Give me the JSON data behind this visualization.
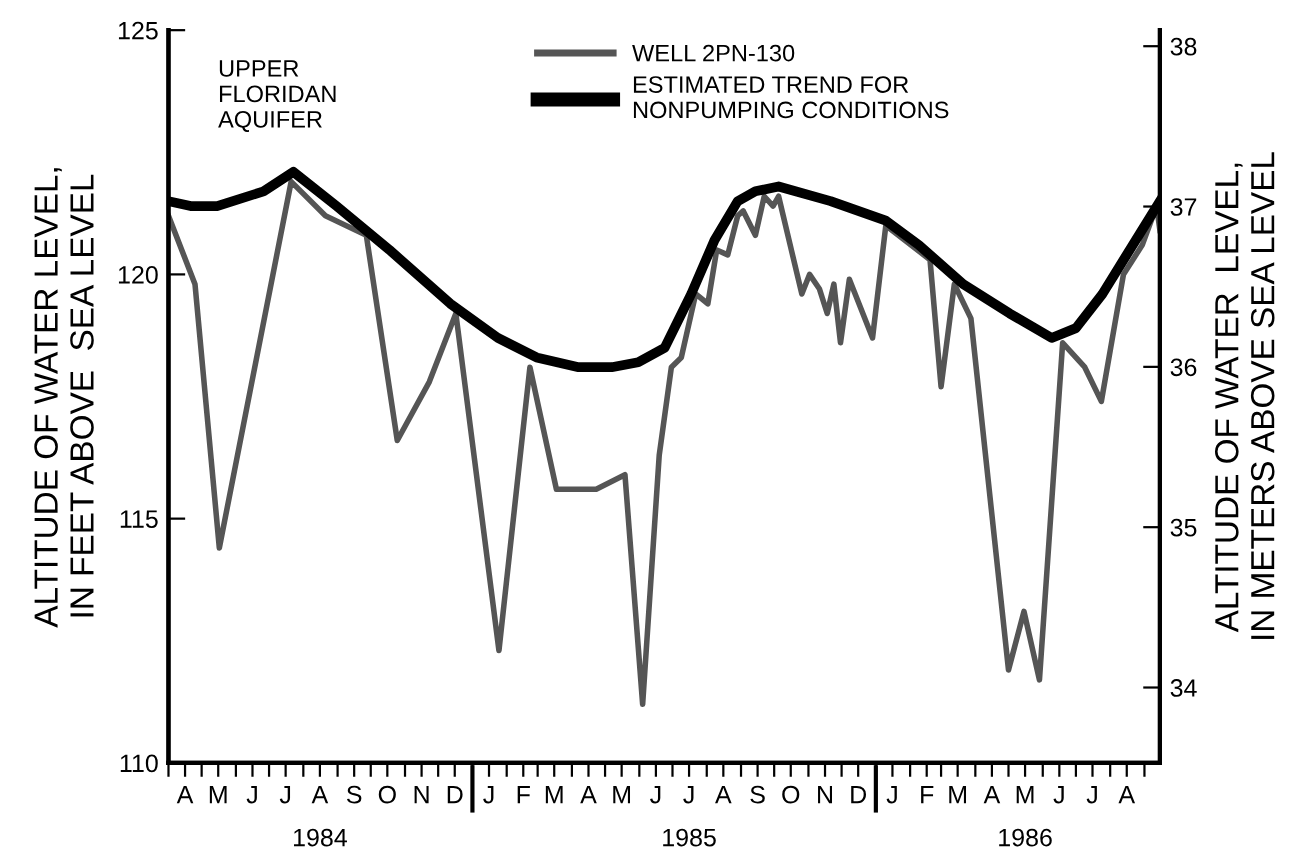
{
  "chart_data": {
    "type": "line",
    "ylabel": "ALTITUDE OF WATER LEVEL,\nIN FEET ABOVE  SEA LEVEL",
    "y2label": "ALTITUDE OF WATER  LEVEL,\nIN METERS ABOVE SEA LEVEL",
    "annotations": [
      "UPPER\nFLORIDAN\nAQUIFER"
    ],
    "series": [
      {
        "name": "WELL 2PN-130",
        "color": "#555555",
        "x": [
          "1984-04-01",
          "1984-04-25",
          "1984-05-17",
          "1984-07-21",
          "1984-08-21",
          "1984-09-27",
          "1984-10-25",
          "1984-11-23",
          "1984-12-17",
          "1985-01-25",
          "1985-02-22",
          "1985-03-18",
          "1985-04-23",
          "1985-05-19",
          "1985-06-04",
          "1985-06-19",
          "1985-06-30",
          "1985-07-09",
          "1985-07-22",
          "1985-08-02",
          "1985-08-10",
          "1985-08-20",
          "1985-08-29",
          "1985-09-03",
          "1985-09-14",
          "1985-09-22",
          "1985-09-30",
          "1985-10-05",
          "1985-10-26",
          "1985-11-02",
          "1985-11-11",
          "1985-11-18",
          "1985-11-24",
          "1985-11-30",
          "1985-12-08",
          "1985-12-29",
          "1986-01-10",
          "1986-02-19",
          "1986-03-01",
          "1986-03-13",
          "1986-03-28",
          "1986-05-01",
          "1986-05-15",
          "1986-05-29",
          "1986-06-19",
          "1986-07-09",
          "1986-07-24",
          "1986-08-13",
          "1986-08-30",
          "1986-09-12",
          "1986-09-15"
        ],
        "values": [
          121.2,
          119.8,
          114.4,
          121.9,
          121.2,
          120.8,
          116.6,
          117.8,
          119.2,
          112.3,
          118.1,
          115.6,
          115.6,
          115.9,
          111.2,
          116.3,
          118.1,
          118.3,
          119.6,
          119.4,
          120.5,
          120.4,
          121.2,
          121.3,
          120.8,
          121.6,
          121.4,
          121.6,
          119.6,
          120.0,
          119.7,
          119.2,
          119.8,
          118.6,
          119.9,
          118.7,
          121.0,
          120.3,
          117.7,
          119.8,
          119.1,
          111.9,
          113.1,
          111.7,
          118.6,
          118.1,
          117.4,
          120.0,
          120.6,
          121.4,
          120.9
        ]
      },
      {
        "name": "ESTIMATED TREND FOR\nNONPUMPING CONDITIONS",
        "color": "#000000",
        "x": [
          "1984-04-01",
          "1984-04-21",
          "1984-05-15",
          "1984-06-26",
          "1984-07-23",
          "1984-08-31",
          "1984-10-18",
          "1984-12-12",
          "1985-01-24",
          "1985-02-28",
          "1985-04-07",
          "1985-05-07",
          "1985-05-31",
          "1985-06-24",
          "1985-07-18",
          "1985-08-08",
          "1985-08-29",
          "1985-09-14",
          "1985-10-05",
          "1985-11-21",
          "1986-01-10",
          "1986-02-09",
          "1986-03-21",
          "1986-05-02",
          "1986-06-09",
          "1986-07-01",
          "1986-07-25",
          "1986-09-15"
        ],
        "values": [
          121.5,
          121.4,
          121.4,
          121.7,
          122.1,
          121.4,
          120.5,
          119.4,
          118.7,
          118.3,
          118.1,
          118.1,
          118.2,
          118.5,
          119.6,
          120.7,
          121.5,
          121.7,
          121.8,
          121.5,
          121.1,
          120.6,
          119.8,
          119.2,
          118.7,
          118.9,
          119.6,
          121.5
        ]
      }
    ],
    "ylim": [
      110,
      125
    ],
    "yticks": [
      110,
      115,
      120,
      125
    ],
    "y2lim": [
      33.53,
      38.1
    ],
    "y2ticks": [
      34,
      35,
      36,
      37,
      38
    ],
    "xlim": [
      "1984-04-01",
      "1986-09-15"
    ],
    "xticks": [
      {
        "value": "1984-04-01",
        "label": null
      },
      {
        "value": "1984-05-01",
        "label": null
      },
      {
        "value": "1984-06-01",
        "label": null
      },
      {
        "value": "1984-07-01",
        "label": null
      },
      {
        "value": "1984-08-01",
        "label": null
      },
      {
        "value": "1984-09-01",
        "label": null
      },
      {
        "value": "1984-10-01",
        "label": null
      },
      {
        "value": "1984-11-01",
        "label": null
      },
      {
        "value": "1984-12-01",
        "label": null
      },
      {
        "value": "1985-01-01",
        "label": null
      },
      {
        "value": "1985-02-01",
        "label": null
      },
      {
        "value": "1985-03-01",
        "label": null
      },
      {
        "value": "1985-04-01",
        "label": null
      },
      {
        "value": "1985-05-01",
        "label": null
      },
      {
        "value": "1985-06-01",
        "label": null
      },
      {
        "value": "1985-07-01",
        "label": null
      },
      {
        "value": "1985-08-01",
        "label": null
      },
      {
        "value": "1985-09-01",
        "label": null
      },
      {
        "value": "1985-10-01",
        "label": null
      },
      {
        "value": "1985-11-01",
        "label": null
      },
      {
        "value": "1985-12-01",
        "label": null
      },
      {
        "value": "1986-01-01",
        "label": null
      },
      {
        "value": "1986-02-01",
        "label": null
      },
      {
        "value": "1986-03-01",
        "label": null
      },
      {
        "value": "1986-04-01",
        "label": null
      },
      {
        "value": "1986-05-01",
        "label": null
      },
      {
        "value": "1986-06-01",
        "label": null
      },
      {
        "value": "1986-07-01",
        "label": null
      },
      {
        "value": "1986-08-01",
        "label": null
      },
      {
        "value": "1986-09-01",
        "label": null
      },
      {
        "value": "1984-04-16",
        "label": "A"
      },
      {
        "value": "1984-05-16",
        "label": "M"
      },
      {
        "value": "1984-06-16",
        "label": "J"
      },
      {
        "value": "1984-07-16",
        "label": "J"
      },
      {
        "value": "1984-08-16",
        "label": "A\n\n1984"
      },
      {
        "value": "1984-09-16",
        "label": "S"
      },
      {
        "value": "1984-10-16",
        "label": "O"
      },
      {
        "value": "1984-11-16",
        "label": "N"
      },
      {
        "value": "1984-12-16",
        "label": "D"
      },
      {
        "value": "1985-01-16",
        "label": "J"
      },
      {
        "value": "1985-02-16",
        "label": "F"
      },
      {
        "value": "1985-03-16",
        "label": "M"
      },
      {
        "value": "1985-04-16",
        "label": "A"
      },
      {
        "value": "1985-05-16",
        "label": "M"
      },
      {
        "value": "1985-06-16",
        "label": "J"
      },
      {
        "value": "1985-07-16",
        "label": "J\n\n1985"
      },
      {
        "value": "1985-08-16",
        "label": "A"
      },
      {
        "value": "1985-09-16",
        "label": "S"
      },
      {
        "value": "1985-10-16",
        "label": "O"
      },
      {
        "value": "1985-11-16",
        "label": "N"
      },
      {
        "value": "1985-12-16",
        "label": "D"
      },
      {
        "value": "1986-01-16",
        "label": "J"
      },
      {
        "value": "1986-02-16",
        "label": "F"
      },
      {
        "value": "1986-03-16",
        "label": "M"
      },
      {
        "value": "1986-04-16",
        "label": "A"
      },
      {
        "value": "1986-05-16",
        "label": "M\n\n1986"
      },
      {
        "value": "1986-06-16",
        "label": "J"
      },
      {
        "value": "1986-07-16",
        "label": "J"
      },
      {
        "value": "1986-08-16",
        "label": "A"
      }
    ],
    "grid": false,
    "legend": "top",
    "marker": "none",
    "line_style": "solid"
  }
}
